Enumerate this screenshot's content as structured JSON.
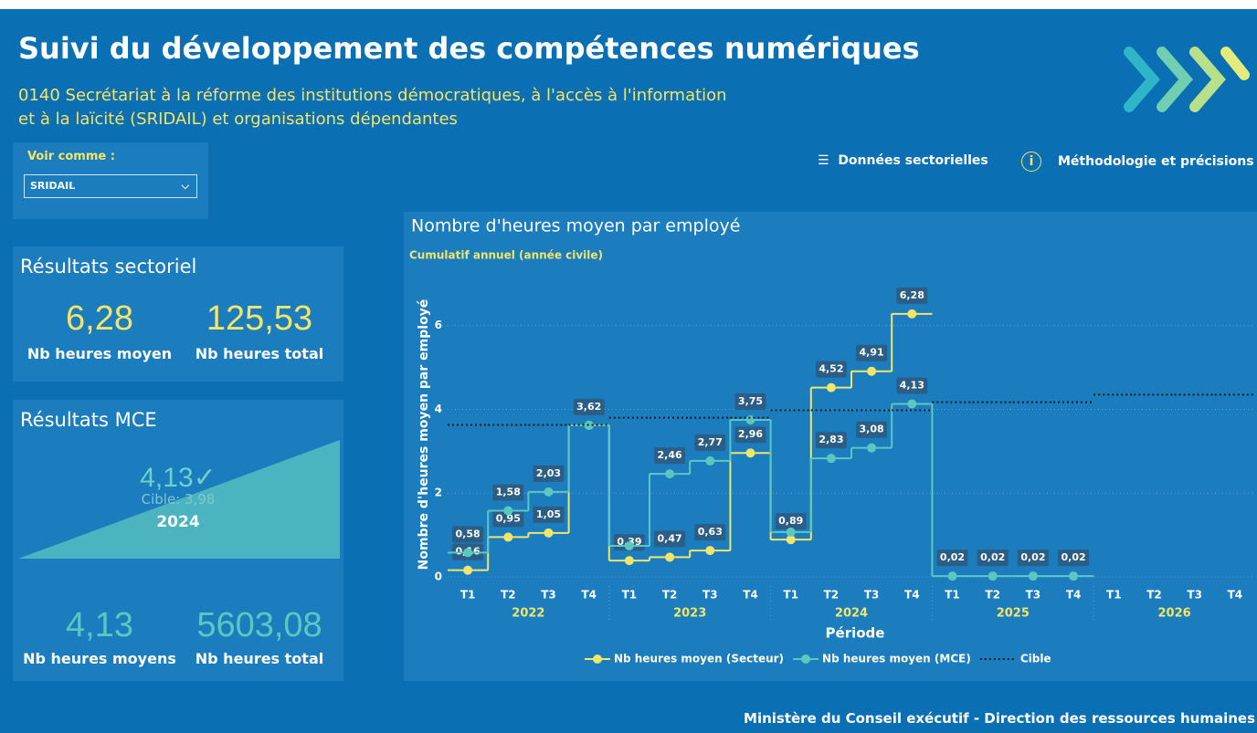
{
  "header": {
    "title": "Suivi du développement des compétences numériques",
    "subtitle_line1": "0140 Secrétariat à la réforme des institutions démocratiques, à l'accès à l'information",
    "subtitle_line2": "et à la laïcité (SRIDAIL) et organisations dépendantes"
  },
  "filter": {
    "label": "Voir comme :",
    "value": "SRIDAIL"
  },
  "nav": {
    "sector": "Données sectorielles",
    "method": "Méthodologie et précisions"
  },
  "sector_card": {
    "title": "Résultats sectoriel",
    "kpi1": {
      "value": "6,28",
      "label": "Nb heures moyen"
    },
    "kpi2": {
      "value": "125,53",
      "label": "Nb heures total"
    }
  },
  "mce_card": {
    "title": "Résultats MCE",
    "gauge_value": "4,13✓",
    "gauge_target": "Cible: 3,98",
    "gauge_year": "2024",
    "kpi1": {
      "value": "4,13",
      "label": "Nb heures moyens"
    },
    "kpi2": {
      "value": "5603,08",
      "label": "Nb heures total"
    }
  },
  "chart": {
    "type": "line",
    "title": "Nombre d'heures moyen par employé",
    "subtitle": "Cumulatif annuel (année civile)",
    "y_label": "Nombre d'heures moyen par employé",
    "x_label": "Période",
    "categories": [
      "T1",
      "T2",
      "T3",
      "T4",
      "T1",
      "T2",
      "T3",
      "T4",
      "T1",
      "T2",
      "T3",
      "T4",
      "T1",
      "T2",
      "T3",
      "T4",
      "T1",
      "T2",
      "T3",
      "T4"
    ],
    "years": [
      "2022",
      "2023",
      "2024",
      "2025",
      "2026"
    ],
    "ylim": [
      0,
      6.8
    ],
    "yticks": [
      0,
      2,
      4,
      6
    ],
    "grid": true,
    "series": [
      {
        "name": "Nb heures moyen (Secteur)",
        "color": "#f3e46a",
        "values": [
          0.16,
          0.95,
          1.05,
          3.62,
          0.39,
          0.47,
          0.63,
          2.96,
          0.89,
          4.52,
          4.91,
          6.28,
          null,
          null,
          null,
          null,
          null,
          null,
          null,
          null
        ],
        "value_labels": [
          "0,16",
          "0,95",
          "1,05",
          null,
          "0,39",
          "0,47",
          "0,63",
          "2,96",
          "0,89",
          "4,52",
          "4,91",
          "6,28",
          null,
          null,
          null,
          null,
          null,
          null,
          null,
          null
        ]
      },
      {
        "name": "Nb heures moyen (MCE)",
        "color": "#5cc7c0",
        "values": [
          0.58,
          1.58,
          2.03,
          3.62,
          0.74,
          2.46,
          2.77,
          3.75,
          1.07,
          2.83,
          3.08,
          4.13,
          0.02,
          0.02,
          0.02,
          0.02,
          null,
          null,
          null,
          null
        ],
        "value_labels": [
          "0,58",
          "1,58",
          "2,03",
          "3,62",
          null,
          "2,46",
          "2,77",
          "3,75",
          null,
          "2,83",
          "3,08",
          "4,13",
          "0,02",
          "0,02",
          "0,02",
          "0,02",
          null,
          null,
          null,
          null
        ]
      },
      {
        "name": "Cible",
        "color": "#1a1a1a",
        "dashed": true,
        "values": [
          3.63,
          3.63,
          3.63,
          3.63,
          3.8,
          3.8,
          3.8,
          3.8,
          3.98,
          3.98,
          3.98,
          3.98,
          4.17,
          4.17,
          4.17,
          4.17,
          4.35,
          4.35,
          4.35,
          4.35
        ]
      }
    ]
  },
  "footer": "Ministère du Conseil exécutif - Direction des ressources humaines"
}
